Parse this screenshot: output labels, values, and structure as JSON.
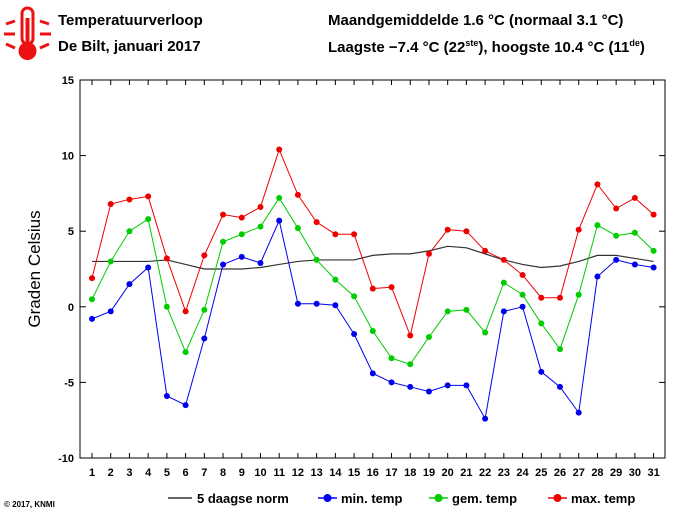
{
  "header": {
    "title": "Temperatuurverloop",
    "subtitle": "De Bilt, januari 2017",
    "month_avg": "Maandgemiddelde 1.6 °C (normaal 3.1 °C)",
    "extremes_prefix": "Laagste −7.4 °C (22",
    "lowest_suffix": "ste",
    "extremes_middle": "), hoogste 10.4 °C (11",
    "highest_suffix": "de",
    "extremes_end": ")"
  },
  "thermometer_icon": "thermometer-icon",
  "copyright": "© 2017, KNMI",
  "chart_data": {
    "type": "line",
    "ylabel": "Graden Celsius",
    "xlabel": "",
    "ylim": [
      -10,
      15
    ],
    "yticks": [
      -10,
      -5,
      0,
      5,
      10,
      15
    ],
    "x": [
      1,
      2,
      3,
      4,
      5,
      6,
      7,
      8,
      9,
      10,
      11,
      12,
      13,
      14,
      15,
      16,
      17,
      18,
      19,
      20,
      21,
      22,
      23,
      24,
      25,
      26,
      27,
      28,
      29,
      30,
      31
    ],
    "grid": false,
    "legend_position": "bottom",
    "series": [
      {
        "name": "5 daagse norm",
        "color": "#333333",
        "marker": false,
        "values": [
          3.0,
          3.0,
          3.0,
          3.0,
          3.1,
          2.8,
          2.5,
          2.5,
          2.5,
          2.6,
          2.8,
          3.0,
          3.1,
          3.1,
          3.1,
          3.4,
          3.5,
          3.5,
          3.7,
          4.0,
          3.9,
          3.5,
          3.1,
          2.8,
          2.6,
          2.7,
          3.0,
          3.4,
          3.4,
          3.2,
          3.0
        ]
      },
      {
        "name": "min. temp",
        "color": "#0000ee",
        "marker": true,
        "values": [
          -0.8,
          -0.3,
          1.5,
          2.6,
          -5.9,
          -6.5,
          -2.1,
          2.8,
          3.3,
          2.9,
          5.7,
          0.2,
          0.2,
          0.1,
          -1.8,
          -4.4,
          -5.0,
          -5.3,
          -5.6,
          -5.2,
          -5.2,
          -7.4,
          -0.3,
          0.0,
          -4.3,
          -5.3,
          -7.0,
          2.0,
          3.1,
          2.8,
          2.6
        ]
      },
      {
        "name": "gem. temp",
        "color": "#00cc00",
        "marker": true,
        "values": [
          0.5,
          3.0,
          5.0,
          5.8,
          0.0,
          -3.0,
          -0.2,
          4.3,
          4.8,
          5.3,
          7.2,
          5.2,
          3.1,
          1.8,
          0.7,
          -1.6,
          -3.4,
          -3.8,
          -2.0,
          -0.3,
          -0.2,
          -1.7,
          1.6,
          0.8,
          -1.1,
          -2.8,
          0.8,
          5.4,
          4.7,
          4.9,
          3.7
        ]
      },
      {
        "name": "max. temp",
        "color": "#ee0000",
        "marker": true,
        "values": [
          1.9,
          6.8,
          7.1,
          7.3,
          3.2,
          -0.3,
          3.4,
          6.1,
          5.9,
          6.6,
          10.4,
          7.4,
          5.6,
          4.8,
          4.8,
          1.2,
          1.3,
          -1.9,
          3.5,
          5.1,
          5.0,
          3.7,
          3.1,
          2.1,
          0.6,
          0.6,
          5.1,
          8.1,
          6.5,
          7.2,
          6.1
        ]
      }
    ]
  }
}
